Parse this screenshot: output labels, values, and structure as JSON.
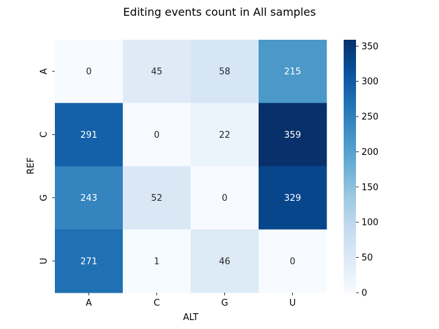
{
  "chart_data": {
    "type": "heatmap",
    "title": "Editing events count in All samples",
    "xlabel": "ALT",
    "ylabel": "REF",
    "x_categories": [
      "A",
      "C",
      "G",
      "U"
    ],
    "y_categories": [
      "A",
      "C",
      "G",
      "U"
    ],
    "values": [
      [
        0,
        45,
        58,
        215
      ],
      [
        291,
        0,
        22,
        359
      ],
      [
        243,
        52,
        0,
        329
      ],
      [
        271,
        1,
        46,
        0
      ]
    ],
    "colormap": "Blues",
    "color_range": [
      0,
      359
    ],
    "colorbar_ticks": [
      "0",
      "50",
      "100",
      "150",
      "200",
      "250",
      "300",
      "350"
    ],
    "colorbar_tick_values": [
      0,
      50,
      100,
      150,
      200,
      250,
      300,
      350
    ],
    "annotation_colors": {
      "light": "#ffffff",
      "dark": "#262626"
    }
  }
}
